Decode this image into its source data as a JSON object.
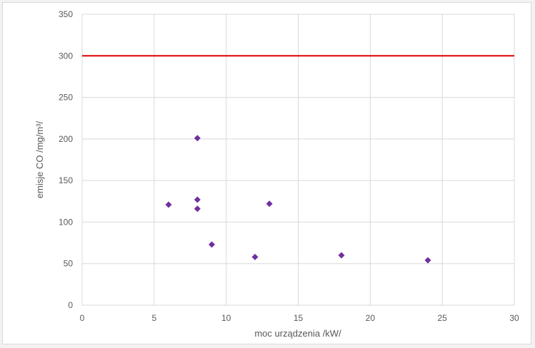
{
  "chart_data": {
    "type": "scatter",
    "title": "",
    "xlabel": "moc urządzenia /kW/",
    "ylabel": "emisje CO  /mg/m³/",
    "xlim": [
      0,
      30
    ],
    "ylim": [
      0,
      350
    ],
    "x_ticks": [
      0,
      5,
      10,
      15,
      20,
      25,
      30
    ],
    "y_ticks": [
      0,
      50,
      100,
      150,
      200,
      250,
      300,
      350
    ],
    "grid": true,
    "legend": "none",
    "series": [
      {
        "color": "#7030a0",
        "marker": "diamond",
        "points": [
          {
            "x": 6,
            "y": 121
          },
          {
            "x": 8,
            "y": 201
          },
          {
            "x": 8,
            "y": 127
          },
          {
            "x": 8,
            "y": 116
          },
          {
            "x": 9,
            "y": 73
          },
          {
            "x": 12,
            "y": 58
          },
          {
            "x": 13,
            "y": 122
          },
          {
            "x": 18,
            "y": 60
          },
          {
            "x": 24,
            "y": 54
          }
        ]
      }
    ],
    "reference_line": {
      "y": 300,
      "color": "#e00000"
    }
  }
}
